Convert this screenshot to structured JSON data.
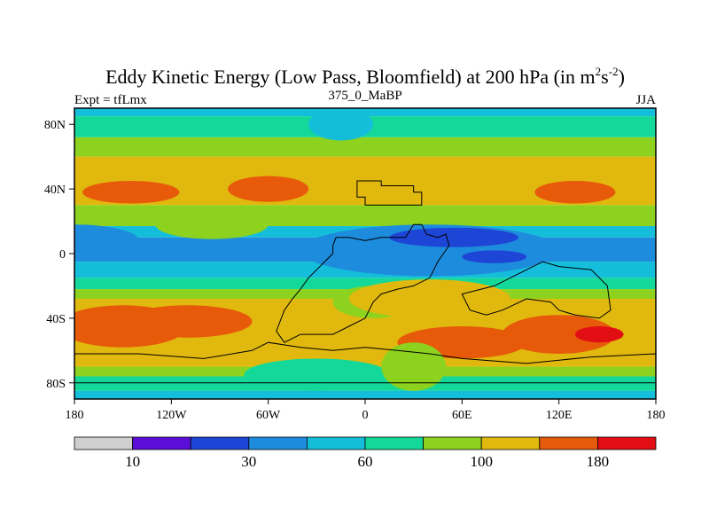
{
  "chart_data": {
    "type": "heatmap",
    "title": {
      "prefix": "Eddy Kinetic Energy (Low Pass, Bloomfield) at 200 hPa (in m",
      "sup1": "2",
      "mid": "s",
      "sup2": "-2",
      "suffix": ")"
    },
    "subtitle_left": "Expt = tfLmx",
    "subtitle_center": "375_0_MaBP",
    "subtitle_right": "JJA",
    "xlim": [
      -180,
      180
    ],
    "ylim": [
      -90,
      90
    ],
    "x_ticks": [
      {
        "value": -180,
        "label": "180"
      },
      {
        "value": -120,
        "label": "120W"
      },
      {
        "value": -60,
        "label": "60W"
      },
      {
        "value": 0,
        "label": "0"
      },
      {
        "value": 60,
        "label": "60E"
      },
      {
        "value": 120,
        "label": "120E"
      },
      {
        "value": 180,
        "label": "180"
      }
    ],
    "y_ticks": [
      {
        "value": 80,
        "label": "80N"
      },
      {
        "value": 40,
        "label": "40N"
      },
      {
        "value": 0,
        "label": "0"
      },
      {
        "value": -40,
        "label": "40S"
      },
      {
        "value": -80,
        "label": "80S"
      }
    ],
    "colorbar": {
      "colors": [
        "#d0d0d0",
        "#5b0fd6",
        "#1e46d6",
        "#1e8cdc",
        "#14beda",
        "#14d89a",
        "#8cd21e",
        "#e1b90e",
        "#e65a0a",
        "#e10f14"
      ],
      "labels": [
        {
          "after_box": 1,
          "text": "10"
        },
        {
          "after_box": 3,
          "text": "30"
        },
        {
          "after_box": 5,
          "text": "60"
        },
        {
          "after_box": 7,
          "text": "100"
        },
        {
          "after_box": 9,
          "text": "180"
        }
      ]
    },
    "bands": [
      {
        "lat_range": [
          90,
          85
        ],
        "level": 4
      },
      {
        "lat_range": [
          85,
          72
        ],
        "level": 5
      },
      {
        "lat_range": [
          72,
          60
        ],
        "level": 6
      },
      {
        "lat_range": [
          60,
          30
        ],
        "level": 7
      },
      {
        "lat_range": [
          30,
          17
        ],
        "level": 6
      },
      {
        "lat_range": [
          17,
          10
        ],
        "level": 4
      },
      {
        "lat_range": [
          10,
          -5
        ],
        "level": 3
      },
      {
        "lat_range": [
          -5,
          -15
        ],
        "level": 4
      },
      {
        "lat_range": [
          -15,
          -22
        ],
        "level": 5
      },
      {
        "lat_range": [
          -22,
          -28
        ],
        "level": 6
      },
      {
        "lat_range": [
          -28,
          -70
        ],
        "level": 7
      },
      {
        "lat_range": [
          -70,
          -76
        ],
        "level": 6
      },
      {
        "lat_range": [
          -76,
          -85
        ],
        "level": 5
      },
      {
        "lat_range": [
          -85,
          -90
        ],
        "level": 4
      }
    ],
    "blobs": [
      {
        "lon": -145,
        "lat": 38,
        "rlon": 30,
        "rlat": 7,
        "level": 8
      },
      {
        "lon": -95,
        "lat": 18,
        "rlon": 35,
        "rlat": 9,
        "level": 6
      },
      {
        "lon": -60,
        "lat": 40,
        "rlon": 25,
        "rlat": 8,
        "level": 8
      },
      {
        "lon": 130,
        "lat": 38,
        "rlon": 25,
        "rlat": 7,
        "level": 8
      },
      {
        "lon": -180,
        "lat": 8,
        "rlon": 40,
        "rlat": 10,
        "level": 3
      },
      {
        "lon": 40,
        "lat": 2,
        "rlon": 80,
        "rlat": 16,
        "level": 3
      },
      {
        "lon": 55,
        "lat": 10,
        "rlon": 40,
        "rlat": 6,
        "level": 2
      },
      {
        "lon": 80,
        "lat": -2,
        "rlon": 20,
        "rlat": 4,
        "level": 2
      },
      {
        "lon": 5,
        "lat": -30,
        "rlon": 25,
        "rlat": 10,
        "level": 6
      },
      {
        "lon": 40,
        "lat": -28,
        "rlon": 50,
        "rlat": 12,
        "level": 7
      },
      {
        "lon": -150,
        "lat": -45,
        "rlon": 40,
        "rlat": 13,
        "level": 8
      },
      {
        "lon": -110,
        "lat": -42,
        "rlon": 40,
        "rlat": 10,
        "level": 8
      },
      {
        "lon": 60,
        "lat": -55,
        "rlon": 40,
        "rlat": 10,
        "level": 8
      },
      {
        "lon": 120,
        "lat": -50,
        "rlon": 35,
        "rlat": 12,
        "level": 8
      },
      {
        "lon": 145,
        "lat": -50,
        "rlon": 15,
        "rlat": 5,
        "level": 9
      },
      {
        "lon": -30,
        "lat": -75,
        "rlon": 45,
        "rlat": 10,
        "level": 5
      },
      {
        "lon": 30,
        "lat": -70,
        "rlon": 20,
        "rlat": 15,
        "level": 6
      },
      {
        "lon": -15,
        "lat": 80,
        "rlon": 20,
        "rlat": 10,
        "level": 4
      }
    ],
    "outlines": [
      [
        [
          -5,
          45
        ],
        [
          10,
          45
        ],
        [
          10,
          42
        ],
        [
          30,
          42
        ],
        [
          30,
          38
        ],
        [
          35,
          38
        ],
        [
          35,
          30
        ],
        [
          0,
          30
        ],
        [
          0,
          35
        ],
        [
          -5,
          35
        ]
      ],
      [
        [
          -20,
          5
        ],
        [
          -18,
          10
        ],
        [
          -10,
          10
        ],
        [
          0,
          8
        ],
        [
          10,
          10
        ],
        [
          25,
          10
        ],
        [
          30,
          18
        ],
        [
          35,
          18
        ],
        [
          38,
          12
        ],
        [
          45,
          10
        ],
        [
          50,
          12
        ],
        [
          52,
          5
        ],
        [
          45,
          -5
        ],
        [
          40,
          -15
        ],
        [
          30,
          -20
        ],
        [
          20,
          -22
        ],
        [
          10,
          -25
        ],
        [
          5,
          -30
        ],
        [
          0,
          -40
        ],
        [
          -10,
          -45
        ],
        [
          -20,
          -50
        ],
        [
          -40,
          -50
        ],
        [
          -50,
          -55
        ],
        [
          -55,
          -48
        ],
        [
          -50,
          -35
        ],
        [
          -45,
          -28
        ],
        [
          -40,
          -22
        ],
        [
          -35,
          -15
        ],
        [
          -25,
          -5
        ],
        [
          -20,
          0
        ]
      ],
      [
        [
          60,
          -25
        ],
        [
          80,
          -20
        ],
        [
          100,
          -10
        ],
        [
          110,
          -5
        ],
        [
          120,
          -8
        ],
        [
          140,
          -10
        ],
        [
          150,
          -20
        ],
        [
          152,
          -35
        ],
        [
          145,
          -40
        ],
        [
          130,
          -38
        ],
        [
          120,
          -35
        ],
        [
          115,
          -30
        ],
        [
          100,
          -28
        ],
        [
          85,
          -35
        ],
        [
          75,
          -38
        ],
        [
          65,
          -35
        ]
      ],
      [
        [
          -180,
          -62
        ],
        [
          -140,
          -62
        ],
        [
          -100,
          -65
        ],
        [
          -70,
          -60
        ],
        [
          -60,
          -55
        ],
        [
          -40,
          -58
        ],
        [
          -20,
          -60
        ],
        [
          0,
          -58
        ],
        [
          20,
          -60
        ],
        [
          40,
          -62
        ],
        [
          60,
          -65
        ],
        [
          100,
          -68
        ],
        [
          140,
          -64
        ],
        [
          180,
          -62
        ],
        [
          180,
          -80
        ],
        [
          -180,
          -80
        ]
      ]
    ]
  }
}
